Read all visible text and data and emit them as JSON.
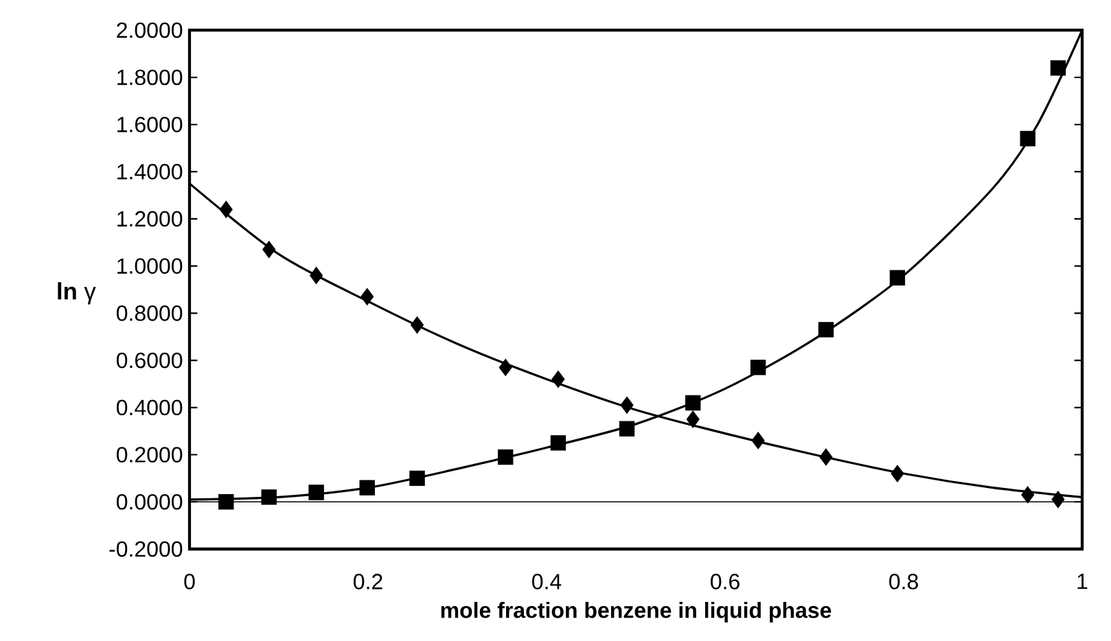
{
  "chart_data": {
    "type": "scatter",
    "xlabel": "mole fraction benzene in liquid phase",
    "ylabel": "**ln** γ",
    "series": [
      {
        "type": "scatter",
        "marker": "diamond",
        "color": "#000000",
        "x": [
          0.041,
          0.089,
          0.142,
          0.199,
          0.255,
          0.354,
          0.413,
          0.49,
          0.564,
          0.637,
          0.713,
          0.793,
          0.939,
          0.973
        ],
        "values": [
          1.24,
          1.07,
          0.96,
          0.87,
          0.75,
          0.57,
          0.52,
          0.41,
          0.35,
          0.26,
          0.19,
          0.12,
          0.03,
          0.01
        ]
      },
      {
        "type": "scatter",
        "marker": "square",
        "color": "#000000",
        "x": [
          0.041,
          0.089,
          0.142,
          0.199,
          0.255,
          0.354,
          0.413,
          0.49,
          0.564,
          0.637,
          0.713,
          0.793,
          0.939,
          0.973
        ],
        "values": [
          0.0,
          0.02,
          0.04,
          0.06,
          0.1,
          0.19,
          0.25,
          0.31,
          0.42,
          0.57,
          0.73,
          0.95,
          1.54,
          1.84
        ]
      },
      {
        "type": "line",
        "marker": "none",
        "color": "#000000",
        "x": [
          0,
          0.1,
          0.2,
          0.3,
          0.4,
          0.5,
          0.6,
          0.7,
          0.8,
          0.9,
          1.0
        ],
        "values": [
          1.35,
          1.05,
          0.85,
          0.67,
          0.52,
          0.39,
          0.29,
          0.2,
          0.12,
          0.06,
          0.02
        ]
      },
      {
        "type": "line",
        "marker": "none",
        "color": "#000000",
        "x": [
          0,
          0.1,
          0.2,
          0.3,
          0.4,
          0.5,
          0.6,
          0.7,
          0.8,
          0.9,
          0.95,
          1.0
        ],
        "values": [
          0.01,
          0.02,
          0.06,
          0.14,
          0.23,
          0.33,
          0.48,
          0.69,
          0.96,
          1.33,
          1.6,
          2.0
        ]
      }
    ],
    "xlim": [
      0,
      1
    ],
    "ylim": [
      -0.2,
      2.0
    ],
    "xticks": [
      0,
      0.2,
      0.4,
      0.6,
      0.8,
      1
    ],
    "yticks": [
      {
        "value": -0.2,
        "label": "-0.2000"
      },
      {
        "value": 0,
        "label": "0.0000"
      },
      {
        "value": 0.2,
        "label": "0.2000"
      },
      {
        "value": 0.4,
        "label": "0.4000"
      },
      {
        "value": 0.6,
        "label": "0.6000"
      },
      {
        "value": 0.8,
        "label": "0.8000"
      },
      {
        "value": 1.0,
        "label": "1.0000"
      },
      {
        "value": 1.2,
        "label": "1.2000"
      },
      {
        "value": 1.4,
        "label": "1.4000"
      },
      {
        "value": 1.6,
        "label": "1.6000"
      },
      {
        "value": 1.8,
        "label": "1.8000"
      },
      {
        "value": 2.0,
        "label": "2.0000"
      }
    ],
    "ref_lines": [
      {
        "axis": "y",
        "value": 0,
        "color": "#000000"
      }
    ]
  }
}
